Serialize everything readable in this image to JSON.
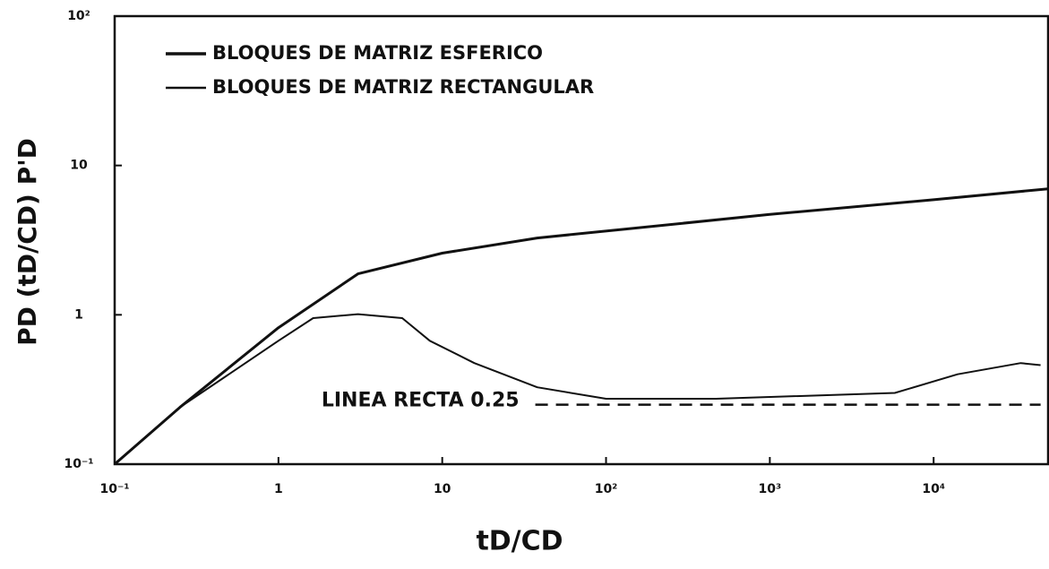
{
  "chart_data": {
    "type": "line",
    "xlabel": "tD/CD",
    "ylabel": "PD (tD/CD) P'D",
    "xscale": "log",
    "yscale": "log",
    "xlim": [
      0.1,
      50000
    ],
    "ylim": [
      0.1,
      100
    ],
    "xticks": [
      {
        "value": 0.1,
        "label": "10⁻¹"
      },
      1,
      10,
      {
        "value": 100,
        "label": "10²"
      },
      {
        "value": 1000,
        "label": "10³"
      },
      {
        "value": 10000,
        "label": "10⁴"
      }
    ],
    "yticks": [
      {
        "value": 0.1,
        "label": "10⁻¹"
      },
      1,
      10,
      {
        "value": 100,
        "label": "10²"
      }
    ],
    "legend": "upper left",
    "series": [
      {
        "name": "BLOQUES DE MATRIZ ESFERICO",
        "color": "#111111",
        "width": 3,
        "x": [
          0.1,
          0.25,
          1,
          3.06,
          10,
          38,
          134,
          1000,
          10000,
          50000
        ],
        "values": [
          0.1,
          0.24,
          0.82,
          1.88,
          2.59,
          3.27,
          3.76,
          4.7,
          5.9,
          6.98
        ]
      },
      {
        "name": "BLOQUES DE MATRIZ RECTANGULAR",
        "color": "#111111",
        "width": 2,
        "x": [
          0.1,
          0.25,
          1,
          1.63,
          3.06,
          5.7,
          8.4,
          15.7,
          38,
          100,
          470,
          5800,
          14000,
          34000,
          45000
        ],
        "values": [
          0.1,
          0.24,
          0.67,
          0.95,
          1.01,
          0.95,
          0.67,
          0.475,
          0.327,
          0.274,
          0.274,
          0.3,
          0.4,
          0.475,
          0.46
        ]
      }
    ],
    "annotations": [
      {
        "text": "LINEA RECTA 0.25",
        "value": 0.25,
        "x": [
          37,
          45000
        ]
      }
    ]
  }
}
